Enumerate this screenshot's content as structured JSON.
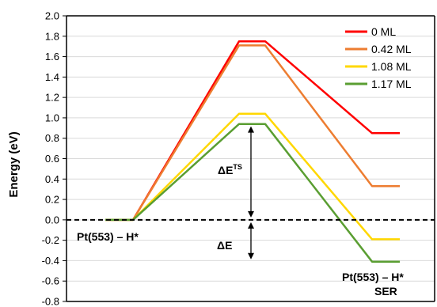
{
  "chart_data": {
    "type": "line",
    "title": "",
    "xlabel": "",
    "ylabel": "Energy (eV)",
    "ylim": [
      -0.8,
      2.0
    ],
    "y_ticks": [
      "2.0",
      "1.8",
      "1.6",
      "1.4",
      "1.2",
      "1.0",
      "0.8",
      "0.6",
      "0.4",
      "0.2",
      "0.0",
      "-0.2",
      "-0.4",
      "-0.6",
      "-0.8"
    ],
    "y_tick_values": [
      2.0,
      1.8,
      1.6,
      1.4,
      1.2,
      1.0,
      0.8,
      0.6,
      0.4,
      0.2,
      0.0,
      -0.2,
      -0.4,
      -0.6,
      -0.8
    ],
    "grid": true,
    "legend_position": "top-right",
    "x": [
      0,
      1,
      2,
      3,
      4,
      5
    ],
    "series": [
      {
        "name": "0 ML",
        "color": "#ff0000",
        "values": [
          0.0,
          0.0,
          1.75,
          1.75,
          0.85,
          0.85
        ]
      },
      {
        "name": "0.42 ML",
        "color": "#ed7d31",
        "values": [
          0.0,
          0.0,
          1.71,
          1.71,
          0.33,
          0.33
        ]
      },
      {
        "name": "1.08 ML",
        "color": "#ffd700",
        "values": [
          0.0,
          0.0,
          1.04,
          1.04,
          -0.19,
          -0.19
        ]
      },
      {
        "name": "1.17 ML",
        "color": "#5a9e32",
        "values": [
          0.0,
          0.0,
          0.94,
          0.94,
          -0.41,
          -0.41
        ]
      }
    ],
    "reference_line": {
      "y": 0.0,
      "style": "dashed"
    },
    "annotations": {
      "initial_state": "Pt(553) – H*",
      "final_state_line1": "Pt(553) – H*",
      "final_state_line2": "SER",
      "barrier_main": "ΔE",
      "barrier_sup": "TS",
      "reaction_energy": "ΔE"
    },
    "arrows": [
      {
        "id": "ts",
        "y_from": 0.94,
        "y_to": 0.0
      },
      {
        "id": "de",
        "y_from": 0.0,
        "y_to": -0.41
      }
    ]
  }
}
